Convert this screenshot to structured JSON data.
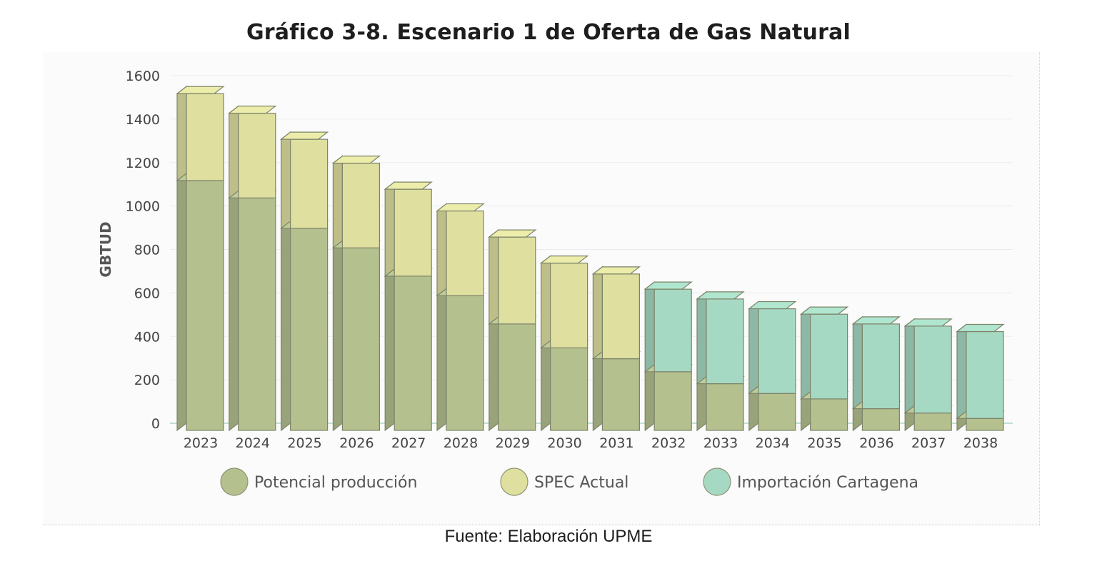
{
  "title": "Gráfico 3-8. Escenario 1 de Oferta de Gas Natural",
  "source": "Fuente: Elaboración UPME",
  "chart_data": {
    "type": "bar",
    "stacked": true,
    "title": "Gráfico 3-8. Escenario 1 de Oferta de Gas Natural",
    "xlabel": "",
    "ylabel": "GBTUD",
    "ylim": [
      0,
      1600
    ],
    "yticks": [
      0,
      200,
      400,
      600,
      800,
      1000,
      1200,
      1400,
      1600
    ],
    "grid": true,
    "legend_position": "bottom",
    "categories": [
      "2023",
      "2024",
      "2025",
      "2026",
      "2027",
      "2028",
      "2029",
      "2030",
      "2031",
      "2032",
      "2033",
      "2034",
      "2035",
      "2036",
      "2037",
      "2038"
    ],
    "series": [
      {
        "name": "Potencial producción",
        "color": "#b4c08e",
        "values": [
          1150,
          1070,
          930,
          840,
          710,
          620,
          490,
          380,
          330,
          270,
          215,
          170,
          145,
          100,
          80,
          55
        ]
      },
      {
        "name": "SPEC Actual",
        "color": "#dfe0a0",
        "values": [
          400,
          390,
          410,
          390,
          400,
          390,
          400,
          390,
          390,
          0,
          0,
          0,
          0,
          0,
          0,
          0
        ]
      },
      {
        "name": "Importación Cartagena",
        "color": "#a6d9c3",
        "values": [
          0,
          0,
          0,
          0,
          0,
          0,
          0,
          0,
          0,
          380,
          390,
          390,
          390,
          390,
          400,
          400
        ]
      }
    ]
  }
}
